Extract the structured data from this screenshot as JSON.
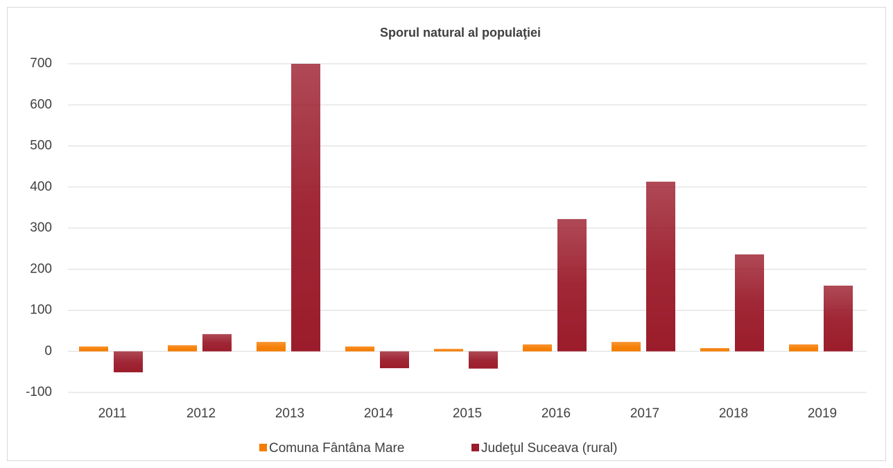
{
  "chart_data": {
    "type": "bar",
    "title": "Sporul natural al populaţiei",
    "categories": [
      "2011",
      "2012",
      "2013",
      "2014",
      "2015",
      "2016",
      "2017",
      "2018",
      "2019"
    ],
    "series": [
      {
        "name": "Comuna Fântâna Mare",
        "color": "#f57c00",
        "values": [
          12,
          15,
          23,
          12,
          6,
          17,
          23,
          8,
          17
        ]
      },
      {
        "name": "Judeţul Suceava (rural)",
        "color": "#9b1c2b",
        "values": [
          -51,
          42,
          700,
          -41,
          -42,
          322,
          413,
          236,
          160
        ]
      }
    ],
    "ylim": [
      -100,
      700
    ],
    "yticks": [
      -100,
      0,
      100,
      200,
      300,
      400,
      500,
      600,
      700
    ],
    "grid": true
  }
}
